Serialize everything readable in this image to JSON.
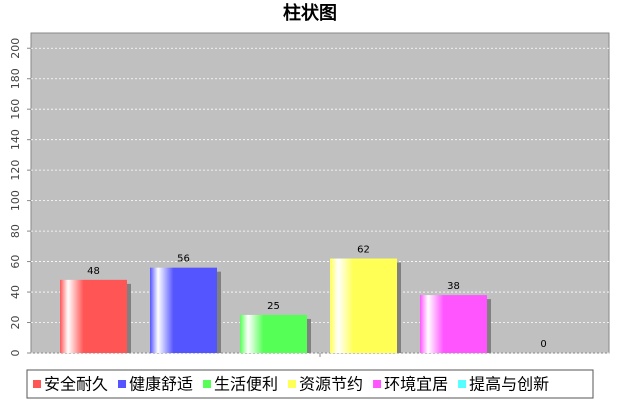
{
  "chart_data": {
    "type": "bar",
    "title": "柱状图",
    "series": [
      {
        "name": "安全耐久",
        "color": "#ff5555",
        "values": [
          48
        ]
      },
      {
        "name": "健康舒适",
        "color": "#5555ff",
        "values": [
          56
        ]
      },
      {
        "name": "生活便利",
        "color": "#55ff55",
        "values": [
          25
        ]
      },
      {
        "name": "资源节约",
        "color": "#ffff55",
        "values": [
          62
        ]
      },
      {
        "name": "环境宜居",
        "color": "#ff55ff",
        "values": [
          38
        ]
      },
      {
        "name": "提高与创新",
        "color": "#55ffff",
        "values": [
          0
        ]
      }
    ],
    "ylim": [
      0,
      210
    ],
    "yticks": [
      0,
      20,
      40,
      60,
      80,
      100,
      120,
      140,
      160,
      180,
      200
    ],
    "grid": true,
    "legend": "bottom"
  }
}
